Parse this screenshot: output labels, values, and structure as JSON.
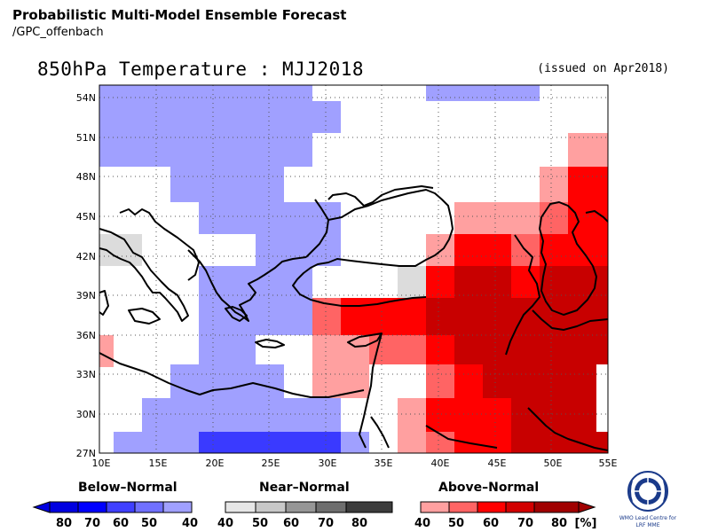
{
  "header": {
    "title": "Probabilistic Multi-Model Ensemble Forecast",
    "subtitle": "/GPC_offenbach"
  },
  "map": {
    "title": "850hPa Temperature : MJJ2018",
    "issued": "(issued on Apr2018)",
    "lat_labels": [
      "54N",
      "51N",
      "48N",
      "45N",
      "42N",
      "39N",
      "36N",
      "33N",
      "30N",
      "27N"
    ],
    "lon_labels": [
      "10E",
      "15E",
      "20E",
      "25E",
      "30E",
      "35E",
      "40E",
      "45E",
      "50E",
      "55E"
    ],
    "extent": {
      "lon_min": 10,
      "lon_max": 55,
      "lat_min": 27,
      "lat_max": 55
    }
  },
  "legend": {
    "below": {
      "title": "Below–Normal",
      "labels": [
        "80",
        "70",
        "60",
        "50",
        "40"
      ],
      "colors": [
        "#0000e0",
        "#0000ff",
        "#4040ff",
        "#7070ff",
        "#a0a0ff"
      ]
    },
    "near": {
      "title": "Near–Normal",
      "labels": [
        "40",
        "50",
        "60",
        "70",
        "80"
      ],
      "colors": [
        "#e6e6e6",
        "#c8c8c8",
        "#969696",
        "#6e6e6e",
        "#3c3c3c"
      ]
    },
    "above": {
      "title": "Above–Normal",
      "labels": [
        "40",
        "50",
        "60",
        "70",
        "80"
      ],
      "colors": [
        "#ffa0a0",
        "#ff6464",
        "#ff0000",
        "#d20000",
        "#a00000"
      ],
      "unit": "[%]"
    },
    "logo_text": [
      "WMO Lead Centre for",
      "LRF MME"
    ]
  },
  "colors": {
    "below_light": "#a0a0ff",
    "below_dark": "#3a3aff",
    "near": "#dcdcdc",
    "above1": "#ffa0a0",
    "above2": "#ff6464",
    "above3": "#ff0000",
    "above4": "#c80000"
  }
}
